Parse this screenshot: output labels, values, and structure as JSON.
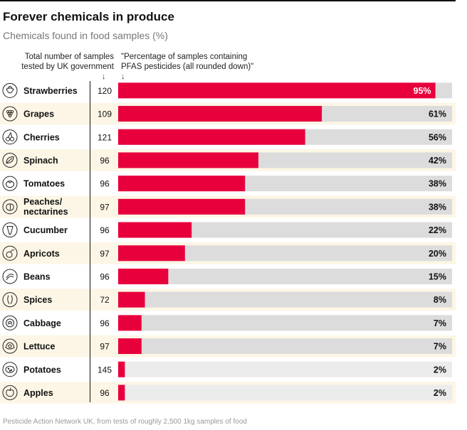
{
  "title": "Forever chemicals in produce",
  "subtitle": "Chemicals found in food samples (%)",
  "column_notes": {
    "samples": [
      "Total number of samples",
      "tested by UK government"
    ],
    "percentage": [
      "\"Percentage of samples containing",
      "PFAS pesticides (all rounded down)\""
    ]
  },
  "arrow_glyph": "↓",
  "footer": "Pesticide Action Network UK, from tests of roughly 2,500 1kg samples of food",
  "colors": {
    "bar": "#e8003d",
    "track": "#dcdcdc",
    "track_low": "#ececec",
    "row_alt": "#fdf6e6",
    "label_on_bar": "#ffffff"
  },
  "chart_data": {
    "type": "bar",
    "orientation": "horizontal",
    "categories": [
      "Strawberries",
      "Grapes",
      "Cherries",
      "Spinach",
      "Tomatoes",
      "Peaches/\nnectarines",
      "Cucumber",
      "Apricots",
      "Beans",
      "Spices",
      "Cabbage",
      "Lettuce",
      "Potatoes",
      "Apples"
    ],
    "samples": [
      120,
      109,
      121,
      96,
      96,
      97,
      96,
      97,
      96,
      72,
      96,
      97,
      145,
      96
    ],
    "values": [
      95,
      61,
      56,
      42,
      38,
      38,
      22,
      20,
      15,
      8,
      7,
      7,
      2,
      2
    ],
    "value_labels": [
      "95%",
      "61%",
      "56%",
      "42%",
      "38%",
      "38%",
      "22%",
      "20%",
      "15%",
      "8%",
      "7%",
      "7%",
      "2%",
      "2%"
    ],
    "icons": [
      "strawberry-icon",
      "grapes-icon",
      "cherries-icon",
      "spinach-icon",
      "tomato-icon",
      "peach-icon",
      "cucumber-icon",
      "apricot-icon",
      "beans-icon",
      "spices-icon",
      "cabbage-icon",
      "lettuce-icon",
      "potato-icon",
      "apple-icon"
    ],
    "xlim": [
      0,
      100
    ],
    "grid": false,
    "legend": "none"
  }
}
